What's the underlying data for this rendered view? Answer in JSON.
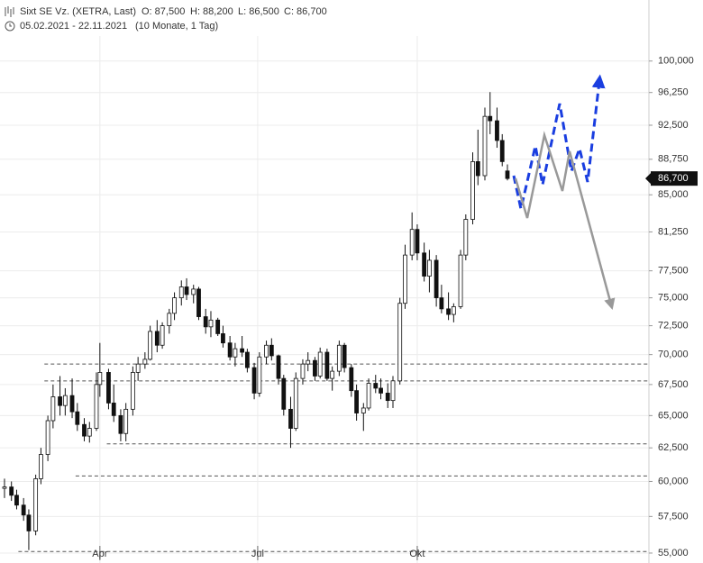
{
  "chart_data": {
    "type": "candlestick",
    "title": "Sixt SE Vz. (XETRA, Last)",
    "quote_items": [
      "O: 87,500",
      "H: 88,200",
      "L: 86,500",
      "C: 86,700"
    ],
    "period": "05.02.2021 - 22.11.2021",
    "period_note": "(10 Monate, 1 Tag)",
    "log_scale": true,
    "grid": true,
    "ylim": [
      54.34,
      107.7
    ],
    "yticks": [
      {
        "value": 55,
        "label": "55,000"
      },
      {
        "value": 57.5,
        "label": "57,500"
      },
      {
        "value": 60,
        "label": "60,000"
      },
      {
        "value": 62.5,
        "label": "62,500"
      },
      {
        "value": 65,
        "label": "65,000"
      },
      {
        "value": 67.5,
        "label": "67,500"
      },
      {
        "value": 70,
        "label": "70,000"
      },
      {
        "value": 72.5,
        "label": "72,500"
      },
      {
        "value": 75,
        "label": "75,000"
      },
      {
        "value": 77.5,
        "label": "77,500"
      },
      {
        "value": 81.25,
        "label": "81,250"
      },
      {
        "value": 85,
        "label": "85,000"
      },
      {
        "value": 88.75,
        "label": "88,750"
      },
      {
        "value": 92.5,
        "label": "92,500"
      },
      {
        "value": 96.25,
        "label": "96,250"
      },
      {
        "value": 100,
        "label": "100,000"
      }
    ],
    "xticks": [
      {
        "value": "2021-04-01",
        "label": "Apr"
      },
      {
        "value": "2021-07-01",
        "label": "Jul"
      },
      {
        "value": "2021-10-01",
        "label": "Okt"
      }
    ],
    "last_value": 86.7,
    "last_label": "86,700",
    "color": "#111111",
    "levels": [
      {
        "value": 69.2,
        "from": "2021-02-28"
      },
      {
        "value": 67.8,
        "from": "2021-02-28"
      },
      {
        "value": 62.8,
        "from": "2021-04-05"
      },
      {
        "value": 60.4,
        "from": "2021-03-18"
      },
      {
        "value": 55.1,
        "from": "2021-02-13"
      }
    ],
    "candles": {
      "x": [
        "2021-02-05",
        "2021-02-09",
        "2021-02-12",
        "2021-02-16",
        "2021-02-19",
        "2021-02-23",
        "2021-02-26",
        "2021-03-02",
        "2021-03-05",
        "2021-03-09",
        "2021-03-12",
        "2021-03-16",
        "2021-03-19",
        "2021-03-23",
        "2021-03-26",
        "2021-03-30",
        "2021-04-01",
        "2021-04-06",
        "2021-04-09",
        "2021-04-13",
        "2021-04-16",
        "2021-04-20",
        "2021-04-23",
        "2021-04-27",
        "2021-04-30",
        "2021-05-04",
        "2021-05-07",
        "2021-05-11",
        "2021-05-14",
        "2021-05-18",
        "2021-05-21",
        "2021-05-25",
        "2021-05-28",
        "2021-06-01",
        "2021-06-04",
        "2021-06-08",
        "2021-06-11",
        "2021-06-15",
        "2021-06-18",
        "2021-06-22",
        "2021-06-25",
        "2021-06-29",
        "2021-07-02",
        "2021-07-06",
        "2021-07-09",
        "2021-07-13",
        "2021-07-16",
        "2021-07-20",
        "2021-07-23",
        "2021-07-27",
        "2021-07-30",
        "2021-08-03",
        "2021-08-06",
        "2021-08-10",
        "2021-08-13",
        "2021-08-17",
        "2021-08-20",
        "2021-08-24",
        "2021-08-27",
        "2021-08-31",
        "2021-09-03",
        "2021-09-07",
        "2021-09-10",
        "2021-09-14",
        "2021-09-17",
        "2021-09-21",
        "2021-09-24",
        "2021-09-28",
        "2021-10-01",
        "2021-10-05",
        "2021-10-08",
        "2021-10-12",
        "2021-10-15",
        "2021-10-19",
        "2021-10-22",
        "2021-10-26",
        "2021-10-29",
        "2021-11-02",
        "2021-11-05",
        "2021-11-09",
        "2021-11-12",
        "2021-11-16",
        "2021-11-19",
        "2021-11-22"
      ],
      "open": [
        59.5,
        59.6,
        59,
        58.3,
        57.6,
        56.5,
        60.2,
        62,
        64.6,
        66.5,
        65.8,
        66.6,
        65.3,
        64.3,
        63.4,
        64,
        67.5,
        68.5,
        66,
        65,
        63.6,
        65.5,
        68.5,
        69.2,
        69.6,
        72,
        70.8,
        72.5,
        73.6,
        75,
        76,
        75.3,
        75.8,
        73.3,
        72.4,
        73,
        71.8,
        71,
        69.8,
        70.5,
        70.2,
        68.9,
        66.8,
        69.8,
        70.8,
        69.9,
        68,
        65.5,
        64,
        68,
        69.2,
        69.5,
        68.2,
        70.2,
        68,
        68.6,
        70.8,
        68.9,
        67,
        65.2,
        65.6,
        67.6,
        67.2,
        66.8,
        66.2,
        67.8,
        74.5,
        79,
        81.5,
        79.2,
        77,
        78.5,
        75,
        74,
        73.5,
        74.2,
        79,
        82.5,
        88.5,
        87,
        93.5,
        93,
        90.8,
        87.5
      ],
      "high": [
        60.2,
        60,
        59.4,
        58.8,
        58,
        60.5,
        62.5,
        65,
        67.5,
        68.2,
        67.2,
        68,
        66,
        64.8,
        64.5,
        68.5,
        71,
        68.8,
        67.5,
        65.5,
        66,
        69,
        69.8,
        70.2,
        72.5,
        73,
        72.8,
        74,
        75.5,
        76.6,
        76.8,
        76.2,
        76,
        74,
        73.8,
        73.2,
        72.5,
        71.6,
        71,
        71.6,
        70.5,
        69.3,
        70.2,
        71.2,
        71.4,
        70,
        68.3,
        66.5,
        68.5,
        69.6,
        70.2,
        69.8,
        70.6,
        70.5,
        69,
        71.2,
        71,
        69.2,
        67.5,
        66,
        68,
        68.3,
        68,
        67.6,
        68.2,
        75,
        80,
        83.2,
        82,
        80.2,
        79.5,
        79,
        76.2,
        75.5,
        74.5,
        79.5,
        83,
        89.5,
        92,
        94.5,
        96.3,
        94.5,
        91.5,
        88.2
      ],
      "low": [
        58.8,
        58.6,
        58,
        57.2,
        55.2,
        56.2,
        59.8,
        61.5,
        64,
        65,
        65,
        64.8,
        63.8,
        63,
        62.9,
        63.8,
        66.5,
        65.5,
        64.5,
        63,
        63,
        65,
        67.8,
        68.8,
        69.5,
        70.2,
        70.5,
        71.8,
        73,
        74.3,
        74.8,
        74.5,
        73,
        71.8,
        71.5,
        71.6,
        70.6,
        69.5,
        69,
        69.8,
        68.5,
        66.3,
        66.5,
        69.2,
        69.5,
        67.5,
        65,
        62.5,
        63.8,
        67.5,
        68.6,
        67.8,
        68,
        67.8,
        67,
        68.2,
        68.5,
        66.5,
        64.6,
        63.8,
        65.4,
        66.8,
        66.3,
        65.6,
        65.6,
        67.5,
        74,
        78.5,
        78.5,
        76.5,
        75.5,
        74.2,
        73.6,
        73,
        72.8,
        74,
        78.5,
        82,
        86,
        86.5,
        91.5,
        90,
        88,
        86.5
      ],
      "close": [
        59.6,
        59,
        58.3,
        57.6,
        56.5,
        60.2,
        62,
        64.6,
        66.5,
        65.8,
        66.6,
        65.3,
        64.3,
        63.4,
        64,
        67.5,
        68.5,
        66,
        65,
        63.6,
        65.5,
        68.5,
        69.2,
        69.6,
        72,
        70.8,
        72.5,
        73.6,
        75,
        76,
        75.3,
        75.8,
        73.3,
        72.4,
        73,
        71.8,
        71,
        69.8,
        70.5,
        70.2,
        68.9,
        66.8,
        69.8,
        70.8,
        69.9,
        68,
        65.5,
        64,
        68,
        69.2,
        69.5,
        68.2,
        70.2,
        68,
        68.6,
        70.8,
        68.9,
        67,
        65.2,
        65.6,
        67.6,
        67.2,
        66.8,
        66.2,
        67.8,
        74.5,
        79,
        81.5,
        79.2,
        77,
        78.5,
        75,
        74,
        73.5,
        74.2,
        79,
        82.5,
        88.5,
        87,
        93.5,
        93,
        90.8,
        88.5,
        86.7
      ]
    }
  }
}
